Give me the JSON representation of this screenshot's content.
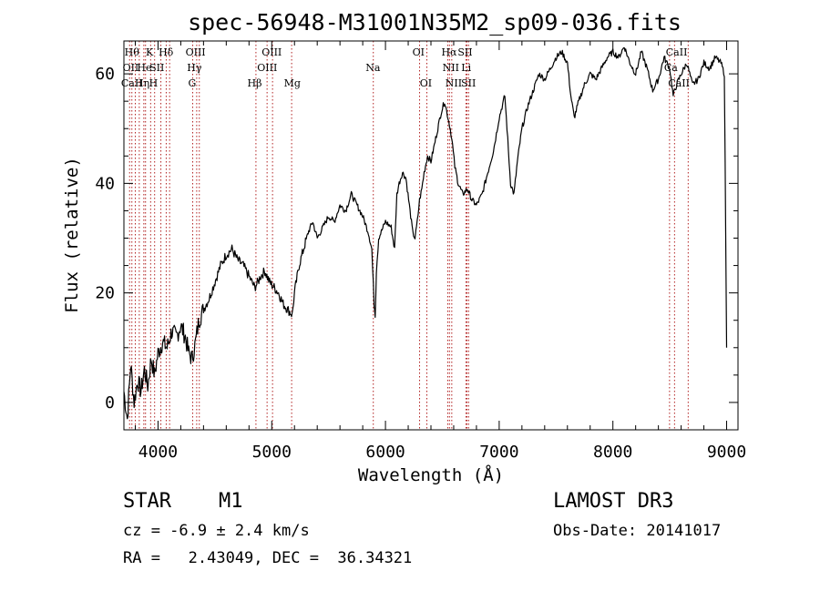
{
  "chart_data": {
    "type": "line",
    "title": "spec-56948-M31001N35M2_sp09-036.fits",
    "xlabel": "Wavelength (Å)",
    "ylabel": "Flux (relative)",
    "xlim": [
      3700,
      9100
    ],
    "ylim": [
      -5,
      66
    ],
    "x_ticks": [
      4000,
      5000,
      6000,
      7000,
      8000,
      9000
    ],
    "y_ticks": [
      0,
      20,
      40,
      60
    ],
    "grid": false,
    "series": [
      {
        "name": "spectrum",
        "x": [
          3700,
          3730,
          3760,
          3790,
          3820,
          3850,
          3880,
          3910,
          3940,
          3970,
          4000,
          4040,
          4080,
          4120,
          4160,
          4200,
          4240,
          4270,
          4300,
          4330,
          4360,
          4400,
          4450,
          4500,
          4550,
          4600,
          4650,
          4700,
          4750,
          4800,
          4850,
          4880,
          4900,
          4940,
          4980,
          5020,
          5060,
          5100,
          5140,
          5180,
          5200,
          5240,
          5280,
          5320,
          5360,
          5400,
          5450,
          5500,
          5550,
          5600,
          5650,
          5700,
          5750,
          5800,
          5850,
          5880,
          5900,
          5910,
          5920,
          5940,
          6000,
          6050,
          6080,
          6100,
          6120,
          6150,
          6180,
          6210,
          6240,
          6260,
          6280,
          6300,
          6320,
          6340,
          6370,
          6400,
          6430,
          6460,
          6490,
          6520,
          6550,
          6570,
          6590,
          6610,
          6640,
          6680,
          6720,
          6760,
          6800,
          6850,
          6900,
          6950,
          7000,
          7050,
          7100,
          7130,
          7160,
          7200,
          7250,
          7300,
          7350,
          7400,
          7450,
          7500,
          7550,
          7600,
          7630,
          7660,
          7700,
          7750,
          7800,
          7850,
          7900,
          7950,
          8000,
          8050,
          8100,
          8150,
          8200,
          8250,
          8300,
          8350,
          8400,
          8450,
          8500,
          8530,
          8560,
          8600,
          8650,
          8700,
          8750,
          8800,
          8850,
          8900,
          8950,
          8980,
          9000
        ],
        "y": [
          2,
          -3,
          7,
          0,
          4,
          2,
          6,
          3,
          8,
          5,
          9,
          11,
          10,
          13,
          12,
          14,
          12,
          9,
          8,
          11,
          15,
          17,
          19,
          22,
          25,
          27,
          28,
          26,
          25,
          23,
          21,
          22,
          23,
          24,
          22,
          21,
          20,
          18,
          17,
          16,
          20,
          25,
          28,
          31,
          33,
          30,
          32,
          34,
          33,
          36,
          35,
          38,
          36,
          34,
          31,
          28,
          18,
          16,
          24,
          30,
          33,
          32,
          28,
          38,
          40,
          42,
          41,
          36,
          31,
          30,
          33,
          37,
          39,
          42,
          45,
          44,
          47,
          50,
          53,
          55,
          52,
          50,
          47,
          43,
          40,
          38,
          39,
          37,
          36,
          38,
          42,
          46,
          52,
          56,
          40,
          38,
          44,
          50,
          54,
          57,
          60,
          59,
          61,
          63,
          64,
          62,
          56,
          52,
          55,
          58,
          60,
          59,
          61,
          63,
          64,
          63,
          65,
          62,
          60,
          64,
          61,
          57,
          59,
          63,
          61,
          56,
          58,
          60,
          62,
          58,
          59,
          62,
          61,
          63,
          62,
          60,
          10
        ]
      }
    ],
    "lines": [
      {
        "wl": 3750,
        "label": "CaII"
      },
      {
        "wl": 3770,
        "label": "Hθ"
      },
      {
        "wl": 3800,
        "label": "OII"
      },
      {
        "wl": 3835,
        "label": "Hη"
      },
      {
        "wl": 3875,
        "label": "He"
      },
      {
        "wl": 3890,
        "label": "Hη"
      },
      {
        "wl": 3935,
        "label": "K"
      },
      {
        "wl": 3970,
        "label": "H"
      },
      {
        "wl": 4025,
        "label": "He"
      },
      {
        "wl": 4072,
        "label": "SII"
      },
      {
        "wl": 4102,
        "label": "Hδ"
      },
      {
        "wl": 4305,
        "label": "G"
      },
      {
        "wl": 4340,
        "label": "Hγ"
      },
      {
        "wl": 4363,
        "label": "OIII"
      },
      {
        "wl": 4861,
        "label": "Hβ"
      },
      {
        "wl": 4959,
        "label": "OIII"
      },
      {
        "wl": 5007,
        "label": "OIII"
      },
      {
        "wl": 5175,
        "label": "Mg"
      },
      {
        "wl": 5893,
        "label": "Na"
      },
      {
        "wl": 6300,
        "label": "OI"
      },
      {
        "wl": 6364,
        "label": "OI"
      },
      {
        "wl": 6548,
        "label": "NII"
      },
      {
        "wl": 6563,
        "label": "Hα"
      },
      {
        "wl": 6583,
        "label": "NII"
      },
      {
        "wl": 6708,
        "label": "Li"
      },
      {
        "wl": 6717,
        "label": "SII"
      },
      {
        "wl": 6731,
        "label": "SII"
      },
      {
        "wl": 8498,
        "label": "CaII"
      },
      {
        "wl": 8542,
        "label": "CaII"
      },
      {
        "wl": 8662,
        "label": "CaII"
      }
    ],
    "line_labels": [
      {
        "text": "Hθ",
        "wl": 3770,
        "row": 0
      },
      {
        "text": "K",
        "wl": 3925,
        "row": 0
      },
      {
        "text": "Hδ",
        "wl": 4070,
        "row": 0
      },
      {
        "text": "OIII",
        "wl": 4330,
        "row": 0
      },
      {
        "text": "OIII",
        "wl": 5000,
        "row": 0
      },
      {
        "text": "OI",
        "wl": 6290,
        "row": 0
      },
      {
        "text": "Hα",
        "wl": 6560,
        "row": 0
      },
      {
        "text": "SII",
        "wl": 6700,
        "row": 0
      },
      {
        "text": "CaII",
        "wl": 8560,
        "row": 0
      },
      {
        "text": "OII",
        "wl": 3760,
        "row": 1
      },
      {
        "text": "He",
        "wl": 3880,
        "row": 1
      },
      {
        "text": "SII",
        "wl": 3990,
        "row": 1
      },
      {
        "text": "Hγ",
        "wl": 4320,
        "row": 1
      },
      {
        "text": "OIII",
        "wl": 4960,
        "row": 1
      },
      {
        "text": "Na",
        "wl": 5890,
        "row": 1
      },
      {
        "text": "NII",
        "wl": 6575,
        "row": 1
      },
      {
        "text": "Li",
        "wl": 6710,
        "row": 1
      },
      {
        "text": "Ca",
        "wl": 8510,
        "row": 1
      },
      {
        "text": "CaII",
        "wl": 3770,
        "row": 2
      },
      {
        "text": "Hη",
        "wl": 3860,
        "row": 2
      },
      {
        "text": "H",
        "wl": 3960,
        "row": 2
      },
      {
        "text": "G",
        "wl": 4300,
        "row": 2
      },
      {
        "text": "Hβ",
        "wl": 4850,
        "row": 2
      },
      {
        "text": "Mg",
        "wl": 5180,
        "row": 2
      },
      {
        "text": "OI",
        "wl": 6355,
        "row": 2
      },
      {
        "text": "NII",
        "wl": 6600,
        "row": 2
      },
      {
        "text": "SII",
        "wl": 6730,
        "row": 2
      },
      {
        "text": "CaII",
        "wl": 8580,
        "row": 2
      }
    ]
  },
  "info": {
    "object_type": "STAR",
    "subclass": "M1",
    "survey": "LAMOST DR3",
    "cz": "cz = -6.9 ± 2.4 km/s",
    "obs_date": "Obs-Date: 20141017",
    "coords": "RA =   2.43049, DEC =  36.34321"
  },
  "colors": {
    "spectrum": "#000000",
    "line_marker": "#b22222"
  }
}
